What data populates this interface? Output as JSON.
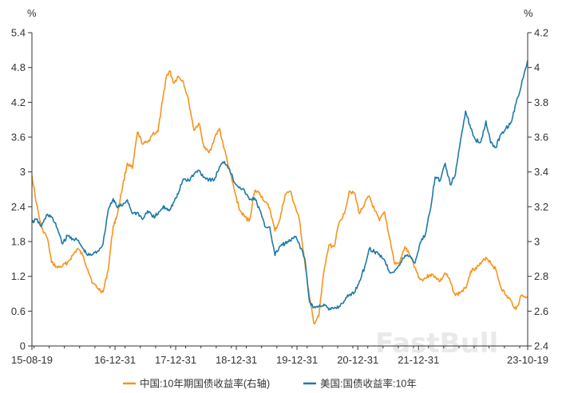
{
  "chart_data": {
    "type": "line",
    "left_unit": "%",
    "right_unit": "%",
    "watermark": "FastBull",
    "x_ticks": [
      "15-08-19",
      "16-12-31",
      "17-12-31",
      "18-12-31",
      "19-12-31",
      "20-12-31",
      "21-12-31",
      "23-10-19"
    ],
    "y_left": {
      "min": 0,
      "max": 5.4,
      "ticks": [
        "0",
        "0.6",
        "1.2",
        "1.8",
        "2.4",
        "3",
        "3.6",
        "4.2",
        "4.8",
        "5.4"
      ]
    },
    "y_right": {
      "min": 2.4,
      "max": 4.2,
      "ticks": [
        "2.4",
        "2.6",
        "2.8",
        "3",
        "3.2",
        "3.4",
        "3.6",
        "3.8",
        "4",
        "4.2"
      ]
    },
    "colors": {
      "china": "#f7941d",
      "us": "#1e7aa6",
      "axis": "#333333"
    },
    "series": [
      {
        "name": "中国:10年期国债收益率(右轴)",
        "axis": "right",
        "color": "#f7941d",
        "x": [
          "2015-08-19",
          "2015-09-15",
          "2015-10-15",
          "2015-11-20",
          "2015-12-15",
          "2016-01-20",
          "2016-02-20",
          "2016-03-20",
          "2016-04-20",
          "2016-05-20",
          "2016-06-20",
          "2016-07-20",
          "2016-08-20",
          "2016-09-20",
          "2016-10-20",
          "2016-11-20",
          "2016-12-20",
          "2017-01-10",
          "2017-02-15",
          "2017-03-15",
          "2017-04-15",
          "2017-05-15",
          "2017-06-15",
          "2017-07-15",
          "2017-08-15",
          "2017-09-15",
          "2017-10-15",
          "2017-11-05",
          "2017-11-25",
          "2017-12-20",
          "2018-01-15",
          "2018-02-15",
          "2018-03-20",
          "2018-04-20",
          "2018-05-20",
          "2018-06-20",
          "2018-07-20",
          "2018-08-20",
          "2018-09-20",
          "2018-10-20",
          "2018-11-20",
          "2018-12-20",
          "2019-01-20",
          "2019-02-20",
          "2019-03-20",
          "2019-04-20",
          "2019-05-20",
          "2019-06-20",
          "2019-07-20",
          "2019-08-20",
          "2019-09-20",
          "2019-10-20",
          "2019-11-20",
          "2019-12-20",
          "2020-01-15",
          "2020-02-15",
          "2020-03-15",
          "2020-04-10",
          "2020-05-10",
          "2020-06-10",
          "2020-07-10",
          "2020-08-10",
          "2020-09-10",
          "2020-10-10",
          "2020-11-10",
          "2020-12-10",
          "2021-01-10",
          "2021-02-10",
          "2021-03-10",
          "2021-04-10",
          "2021-05-10",
          "2021-06-10",
          "2021-07-10",
          "2021-08-10",
          "2021-09-10",
          "2021-10-10",
          "2021-11-10",
          "2021-12-10",
          "2022-01-10",
          "2022-02-10",
          "2022-03-10",
          "2022-04-10",
          "2022-05-10",
          "2022-06-10",
          "2022-07-10",
          "2022-08-10",
          "2022-09-10",
          "2022-10-10",
          "2022-11-10",
          "2022-12-10",
          "2023-01-10",
          "2023-02-10",
          "2023-03-10",
          "2023-04-10",
          "2023-05-10",
          "2023-06-10",
          "2023-07-10",
          "2023-08-10",
          "2023-09-10",
          "2023-10-19"
        ],
        "values": [
          3.38,
          3.22,
          3.08,
          3.02,
          2.88,
          2.85,
          2.86,
          2.88,
          2.92,
          2.96,
          2.92,
          2.84,
          2.76,
          2.73,
          2.71,
          2.84,
          3.09,
          3.14,
          3.32,
          3.45,
          3.42,
          3.63,
          3.56,
          3.57,
          3.62,
          3.63,
          3.82,
          3.95,
          3.98,
          3.91,
          3.95,
          3.92,
          3.8,
          3.64,
          3.68,
          3.54,
          3.51,
          3.59,
          3.65,
          3.53,
          3.41,
          3.29,
          3.18,
          3.14,
          3.12,
          3.29,
          3.28,
          3.23,
          3.19,
          3.06,
          3.13,
          3.27,
          3.29,
          3.2,
          3.12,
          2.89,
          2.68,
          2.53,
          2.57,
          2.83,
          2.98,
          2.97,
          3.11,
          3.16,
          3.29,
          3.28,
          3.16,
          3.22,
          3.26,
          3.18,
          3.12,
          3.17,
          3.02,
          2.87,
          2.88,
          2.97,
          2.92,
          2.85,
          2.78,
          2.79,
          2.81,
          2.8,
          2.77,
          2.82,
          2.77,
          2.69,
          2.71,
          2.73,
          2.83,
          2.85,
          2.87,
          2.91,
          2.88,
          2.84,
          2.74,
          2.69,
          2.66,
          2.61,
          2.69,
          2.68
        ]
      },
      {
        "name": "美国:国债收益率:10年",
        "axis": "left",
        "color": "#1e7aa6",
        "x": [
          "2015-08-19",
          "2015-09-15",
          "2015-10-15",
          "2015-11-20",
          "2015-12-15",
          "2016-01-20",
          "2016-02-20",
          "2016-03-20",
          "2016-04-20",
          "2016-05-20",
          "2016-06-20",
          "2016-07-20",
          "2016-08-20",
          "2016-09-20",
          "2016-10-20",
          "2016-11-20",
          "2016-12-20",
          "2017-01-10",
          "2017-02-15",
          "2017-03-15",
          "2017-04-15",
          "2017-05-15",
          "2017-06-15",
          "2017-07-15",
          "2017-08-15",
          "2017-09-15",
          "2017-10-15",
          "2017-11-05",
          "2017-11-25",
          "2017-12-20",
          "2018-01-15",
          "2018-02-15",
          "2018-03-20",
          "2018-04-20",
          "2018-05-20",
          "2018-06-20",
          "2018-07-20",
          "2018-08-20",
          "2018-09-20",
          "2018-10-20",
          "2018-11-20",
          "2018-12-20",
          "2019-01-20",
          "2019-02-20",
          "2019-03-20",
          "2019-04-20",
          "2019-05-20",
          "2019-06-20",
          "2019-07-20",
          "2019-08-20",
          "2019-09-20",
          "2019-10-20",
          "2019-11-20",
          "2019-12-20",
          "2020-01-15",
          "2020-02-15",
          "2020-03-15",
          "2020-04-10",
          "2020-05-10",
          "2020-06-10",
          "2020-07-10",
          "2020-08-10",
          "2020-09-10",
          "2020-10-10",
          "2020-11-10",
          "2020-12-10",
          "2021-01-10",
          "2021-02-10",
          "2021-03-10",
          "2021-04-10",
          "2021-05-10",
          "2021-06-10",
          "2021-07-10",
          "2021-08-10",
          "2021-09-10",
          "2021-10-10",
          "2021-11-10",
          "2021-12-10",
          "2022-01-10",
          "2022-02-10",
          "2022-03-10",
          "2022-04-10",
          "2022-05-10",
          "2022-06-10",
          "2022-07-10",
          "2022-08-10",
          "2022-09-10",
          "2022-10-10",
          "2022-11-10",
          "2022-12-10",
          "2023-01-10",
          "2023-02-10",
          "2023-03-10",
          "2023-04-10",
          "2023-05-10",
          "2023-06-10",
          "2023-07-10",
          "2023-08-10",
          "2023-09-10",
          "2023-10-19"
        ],
        "values": [
          2.13,
          2.18,
          2.06,
          2.27,
          2.22,
          2.02,
          1.76,
          1.9,
          1.85,
          1.82,
          1.68,
          1.56,
          1.58,
          1.64,
          1.76,
          2.35,
          2.54,
          2.4,
          2.42,
          2.52,
          2.28,
          2.3,
          2.18,
          2.33,
          2.22,
          2.27,
          2.39,
          2.37,
          2.35,
          2.48,
          2.62,
          2.88,
          2.85,
          2.96,
          3.03,
          2.91,
          2.87,
          2.86,
          3.08,
          3.18,
          3.05,
          2.82,
          2.74,
          2.66,
          2.52,
          2.55,
          2.35,
          2.06,
          2.05,
          1.56,
          1.72,
          1.77,
          1.81,
          1.88,
          1.75,
          1.52,
          0.76,
          0.66,
          0.68,
          0.72,
          0.62,
          0.65,
          0.68,
          0.78,
          0.88,
          0.92,
          1.12,
          1.36,
          1.68,
          1.62,
          1.58,
          1.48,
          1.27,
          1.3,
          1.4,
          1.56,
          1.55,
          1.43,
          1.78,
          1.92,
          2.32,
          2.91,
          2.85,
          3.15,
          2.78,
          2.95,
          3.55,
          4.05,
          3.75,
          3.55,
          3.52,
          3.88,
          3.5,
          3.42,
          3.65,
          3.75,
          3.85,
          4.18,
          4.48,
          4.92
        ]
      }
    ]
  }
}
